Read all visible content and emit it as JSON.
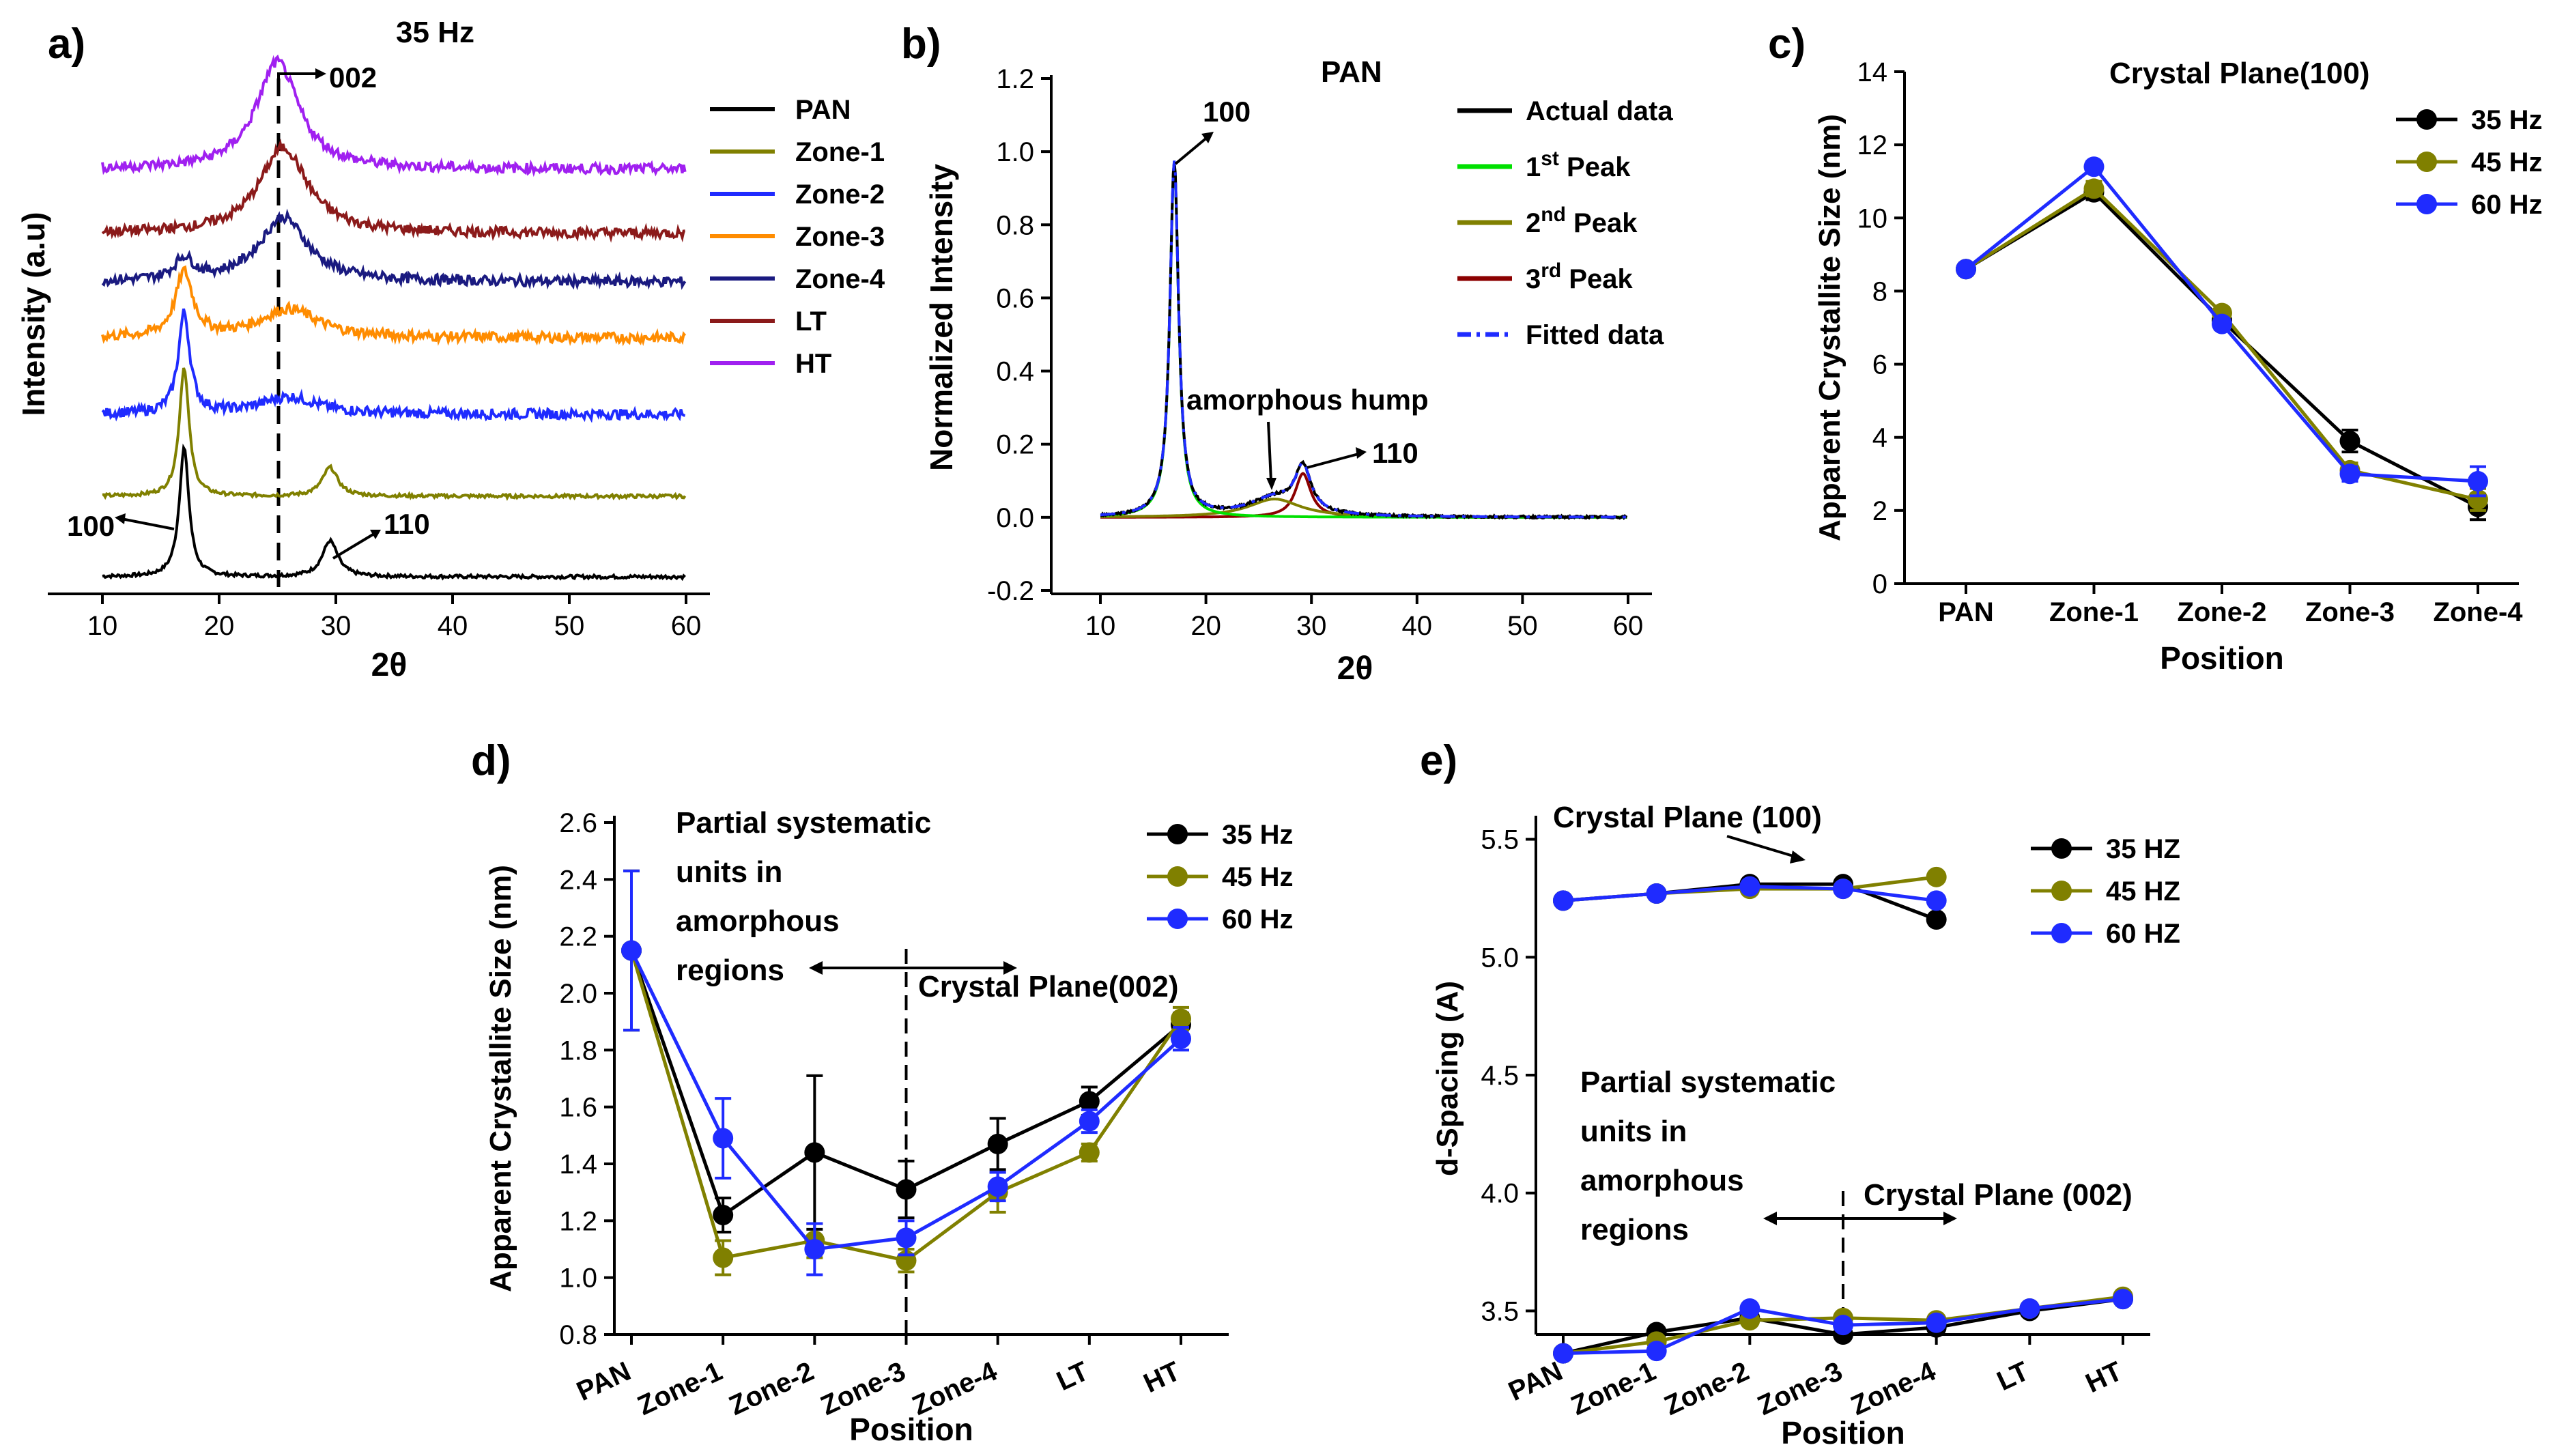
{
  "colors": {
    "black": "#000000",
    "olive": "#808000",
    "blue": "#1f2bff",
    "green": "#00e000",
    "darkred": "#8b0000",
    "orange": "#ff8c00",
    "navy": "#1a1a80",
    "maroon": "#8b1a1a",
    "purple": "#a020f0"
  },
  "chart_data": [
    {
      "id": "a",
      "panel_label": "a)",
      "type": "line",
      "title": "35 Hz",
      "xlabel": "2θ",
      "ylabel": "Intensity (a.u)",
      "xlim": [
        10,
        60
      ],
      "xticks": [
        "10",
        "20",
        "30",
        "40",
        "50",
        "60"
      ],
      "annotations": {
        "peak_002": "002",
        "peak_100": "100",
        "peak_110": "110"
      },
      "series": [
        {
          "name": "PAN",
          "color": "#000000",
          "baseline": 0,
          "peaks": [
            [
              17,
              0.9,
              0.5
            ],
            [
              29.5,
              0.25,
              0.8
            ]
          ]
        },
        {
          "name": "Zone-1",
          "color": "#808000",
          "baseline": 1,
          "peaks": [
            [
              17,
              0.9,
              0.5
            ],
            [
              29.5,
              0.2,
              0.8
            ]
          ]
        },
        {
          "name": "Zone-2",
          "color": "#1f2bff",
          "baseline": 2,
          "peaks": [
            [
              17,
              0.7,
              0.6
            ],
            [
              26,
              0.12,
              3
            ]
          ]
        },
        {
          "name": "Zone-3",
          "color": "#ff8c00",
          "baseline": 3,
          "peaks": [
            [
              17,
              0.45,
              0.9
            ],
            [
              26,
              0.2,
              3
            ]
          ]
        },
        {
          "name": "Zone-4",
          "color": "#1a1a80",
          "baseline": 4,
          "peaks": [
            [
              25.5,
              0.45,
              2.5
            ],
            [
              17,
              0.15,
              1
            ]
          ]
        },
        {
          "name": "LT",
          "color": "#8b1a1a",
          "baseline": 5,
          "peaks": [
            [
              25.5,
              0.6,
              2.5
            ]
          ]
        },
        {
          "name": "HT",
          "color": "#a020f0",
          "baseline": 6,
          "peaks": [
            [
              25,
              0.75,
              2.2
            ]
          ]
        }
      ]
    },
    {
      "id": "b",
      "panel_label": "b)",
      "type": "line",
      "title": "PAN",
      "xlabel": "2θ",
      "ylabel": "Normalized Intensity",
      "xlim": [
        10,
        60
      ],
      "ylim": [
        -0.2,
        1.2
      ],
      "xticks": [
        "10",
        "20",
        "30",
        "40",
        "50",
        "60"
      ],
      "yticks": [
        "-0.2",
        "0.0",
        "0.2",
        "0.4",
        "0.6",
        "0.8",
        "1.0",
        "1.2"
      ],
      "annotations": {
        "peak_100": "100",
        "hump": "amorphous hump",
        "peak_110": "110"
      },
      "legend": [
        {
          "sup_base": "",
          "label": "Actual data",
          "sup": "",
          "color": "#000000",
          "dash": "solid"
        },
        {
          "sup_base": "1",
          "sup": "st",
          "label": "Peak",
          "color": "#00e000",
          "dash": "solid"
        },
        {
          "sup_base": "2",
          "sup": "nd",
          "label": "Peak",
          "color": "#808000",
          "dash": "solid"
        },
        {
          "sup_base": "3",
          "sup": "rd",
          "label": "Peak",
          "color": "#8b0000",
          "dash": "solid"
        },
        {
          "sup_base": "",
          "label": "Fitted data",
          "sup": "",
          "color": "#1f2bff",
          "dash": "dashdot"
        }
      ],
      "peaks": [
        [
          17,
          0.97,
          0.5
        ],
        [
          26.5,
          0.05,
          3
        ],
        [
          29.2,
          0.12,
          0.9
        ]
      ]
    },
    {
      "id": "c",
      "panel_label": "c)",
      "type": "line",
      "title": "Crystal Plane(100)",
      "xlabel": "Position",
      "ylabel": "Apparent Crystallite Size (nm)",
      "ylim": [
        0,
        14
      ],
      "yticks": [
        "0",
        "2",
        "4",
        "6",
        "8",
        "10",
        "12",
        "14"
      ],
      "categories": [
        "PAN",
        "Zone-1",
        "Zone-2",
        "Zone-3",
        "Zone-4"
      ],
      "series": [
        {
          "name": "35 Hz",
          "color": "#000000",
          "values": [
            8.6,
            10.7,
            7.2,
            3.9,
            2.1
          ],
          "err": [
            0.1,
            0.2,
            0.15,
            0.3,
            0.35
          ]
        },
        {
          "name": "45 Hz",
          "color": "#808000",
          "values": [
            8.6,
            10.8,
            7.4,
            3.1,
            2.3
          ],
          "err": [
            0.1,
            0.2,
            0.15,
            0.2,
            0.3
          ]
        },
        {
          "name": "60 Hz",
          "color": "#1f2bff",
          "values": [
            8.6,
            11.4,
            7.1,
            3.0,
            2.8
          ],
          "err": [
            0.1,
            0.15,
            0.15,
            0.2,
            0.4
          ]
        }
      ]
    },
    {
      "id": "d",
      "panel_label": "d)",
      "type": "line",
      "xlabel": "Position",
      "ylabel": "Apparent Crystallite Size (nm)",
      "ylim": [
        0.8,
        2.6
      ],
      "yticks": [
        "0.8",
        "1.0",
        "1.2",
        "1.4",
        "1.6",
        "1.8",
        "2.0",
        "2.2",
        "2.4",
        "2.6"
      ],
      "categories": [
        "PAN",
        "Zone-1",
        "Zone-2",
        "Zone-3",
        "Zone-4",
        "LT",
        "HT"
      ],
      "annotations": {
        "left": [
          "Partial systematic",
          "units in",
          "amorphous",
          "regions"
        ],
        "right": "Crystal Plane(002)"
      },
      "divider_after": "Zone-3",
      "series": [
        {
          "name": "35 Hz",
          "color": "#000000",
          "values": [
            2.15,
            1.22,
            1.44,
            1.31,
            1.47,
            1.62,
            1.89
          ],
          "err": [
            0.28,
            0.06,
            0.27,
            0.1,
            0.09,
            0.05,
            0.04
          ]
        },
        {
          "name": "45 Hz",
          "color": "#808000",
          "values": [
            2.15,
            1.07,
            1.13,
            1.06,
            1.3,
            1.44,
            1.91
          ],
          "err": [
            0.28,
            0.06,
            0.06,
            0.04,
            0.07,
            0.03,
            0.04
          ]
        },
        {
          "name": "60 Hz",
          "color": "#1f2bff",
          "values": [
            2.15,
            1.49,
            1.1,
            1.14,
            1.32,
            1.55,
            1.84
          ],
          "err": [
            0.28,
            0.14,
            0.09,
            0.06,
            0.05,
            0.04,
            0.04
          ]
        }
      ]
    },
    {
      "id": "e",
      "panel_label": "e)",
      "type": "line",
      "xlabel": "Position",
      "ylabel": "d-Spacing (A)",
      "ylim": [
        3.4,
        5.6
      ],
      "yticks": [
        "3.5",
        "4.0",
        "4.5",
        "5.0",
        "5.5"
      ],
      "categories": [
        "PAN",
        "Zone-1",
        "Zone-2",
        "Zone-3",
        "Zone-4",
        "LT",
        "HT"
      ],
      "annotations": {
        "top": "Crystal Plane (100)",
        "left": [
          "Partial systematic",
          "units in",
          "amorphous",
          "regions"
        ],
        "right": "Crystal Plane (002)"
      },
      "divider_after": "Zone-3",
      "series": [
        {
          "name": "35 HZ",
          "color": "#000000",
          "upper": [
            5.24,
            5.27,
            5.31,
            5.31,
            5.16
          ],
          "lower": [
            3.32,
            3.41,
            3.47,
            3.4,
            3.43,
            3.5,
            3.55
          ]
        },
        {
          "name": "45 HZ",
          "color": "#808000",
          "upper": [
            5.24,
            5.27,
            5.29,
            5.29,
            5.34
          ],
          "lower": [
            3.32,
            3.37,
            3.46,
            3.47,
            3.46,
            3.51,
            3.56
          ]
        },
        {
          "name": "60 HZ",
          "color": "#1f2bff",
          "upper": [
            5.24,
            5.27,
            5.3,
            5.29,
            5.24
          ],
          "lower": [
            3.32,
            3.33,
            3.51,
            3.44,
            3.45,
            3.51,
            3.55
          ]
        }
      ]
    }
  ]
}
